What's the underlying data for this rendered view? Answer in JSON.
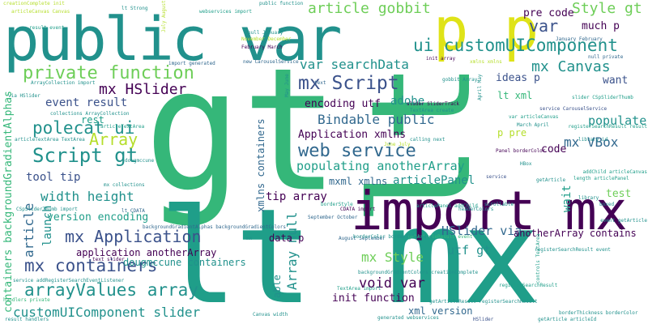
{
  "palette": {
    "dark_purple": "#440154",
    "indigo": "#3b528b",
    "blue": "#31688e",
    "teal": "#21918c",
    "green_teal": "#1f9e89",
    "green": "#35b779",
    "light_green": "#6ece58",
    "lime": "#b5de2b",
    "yellow": "#dfe318"
  },
  "words": [
    {
      "text": "gt",
      "color": "green"
    },
    {
      "text": "lt",
      "color": "green"
    },
    {
      "text": "lt mx",
      "color": "green_teal"
    },
    {
      "text": "import mx",
      "color": "dark_purple"
    },
    {
      "text": "public var",
      "color": "teal"
    },
    {
      "text": "p p",
      "color": "yellow"
    },
    {
      "text": "private function",
      "color": "light_green"
    },
    {
      "text": "ui customUIComponent",
      "color": "teal"
    },
    {
      "text": "mx Script",
      "color": "indigo"
    },
    {
      "text": "mx Canvas",
      "color": "teal"
    },
    {
      "text": "var searchData",
      "color": "teal"
    },
    {
      "text": "article gobbit",
      "color": "light_green"
    },
    {
      "text": "Style gt",
      "color": "light_green"
    },
    {
      "text": "pre code",
      "color": "dark_purple"
    },
    {
      "text": "var",
      "color": "indigo"
    },
    {
      "text": "much p",
      "color": "dark_purple"
    },
    {
      "text": "polecat ui",
      "color": "teal"
    },
    {
      "text": "web service",
      "color": "blue"
    },
    {
      "text": "Array",
      "color": "lime"
    },
    {
      "text": "Script gt",
      "color": "teal"
    },
    {
      "text": "mx HSlider",
      "color": "dark_purple"
    },
    {
      "text": "event result",
      "color": "indigo"
    },
    {
      "text": "width height",
      "color": "teal"
    },
    {
      "text": "mx Application",
      "color": "indigo"
    },
    {
      "text": "mx containers",
      "color": "indigo"
    },
    {
      "text": "arrayValues array",
      "color": "teal"
    },
    {
      "text": "customUIComponent slider",
      "color": "teal"
    },
    {
      "text": "Bindable public",
      "color": "blue"
    },
    {
      "text": "mx VBox",
      "color": "blue"
    },
    {
      "text": "populate",
      "color": "teal"
    },
    {
      "text": "want",
      "color": "indigo"
    },
    {
      "text": "code",
      "color": "dark_purple"
    },
    {
      "text": "test",
      "color": "light_green"
    },
    {
      "text": "wait",
      "color": "green_teal"
    },
    {
      "text": "populating anotherArray",
      "color": "green_teal"
    },
    {
      "text": "articlePanel",
      "color": "teal"
    },
    {
      "text": "mxml xmlns",
      "color": "blue"
    },
    {
      "text": "tip array",
      "color": "dark_purple"
    },
    {
      "text": "mx Style",
      "color": "light_green"
    },
    {
      "text": "void var",
      "color": "dark_purple"
    },
    {
      "text": "init function",
      "color": "dark_purple"
    },
    {
      "text": "HSlider via",
      "color": "blue"
    },
    {
      "text": "utf gt",
      "color": "teal"
    },
    {
      "text": "anotherArray contains",
      "color": "dark_purple"
    },
    {
      "text": "Array null",
      "color": "teal"
    },
    {
      "text": "xml version",
      "color": "blue"
    },
    {
      "text": "able",
      "color": "teal"
    },
    {
      "text": "encoding utf",
      "color": "dark_purple"
    },
    {
      "text": "Application xmlns",
      "color": "dark_purple"
    },
    {
      "text": "adobe",
      "color": "teal"
    },
    {
      "text": "tool tip",
      "color": "indigo"
    },
    {
      "text": "rest",
      "color": "green_teal"
    },
    {
      "text": "launch",
      "color": "teal"
    },
    {
      "text": "version encoding",
      "color": "green_teal"
    },
    {
      "text": "application anotherArray",
      "color": "dark_purple"
    },
    {
      "text": "dougmccune containers",
      "color": "teal"
    },
    {
      "text": "article",
      "color": "blue"
    },
    {
      "text": "containers backgroundGradientAlphas",
      "color": "green"
    },
    {
      "text": "xmlns containers",
      "color": "blue"
    },
    {
      "text": "ideas p",
      "color": "indigo"
    },
    {
      "text": "lt xml",
      "color": "green"
    },
    {
      "text": "data p",
      "color": "dark_purple"
    },
    {
      "text": "p pre",
      "color": "lime"
    },
    {
      "text": "ArrayCollection import",
      "color": "teal"
    },
    {
      "text": "creationComplete init",
      "color": "lime"
    },
    {
      "text": "articleCanvas Canvas",
      "color": "lime"
    },
    {
      "text": "null January",
      "color": "teal"
    },
    {
      "text": "November December",
      "color": "lime"
    },
    {
      "text": "February March",
      "color": "dark_purple"
    },
    {
      "text": "new CarouselService",
      "color": "blue"
    },
    {
      "text": "September October",
      "color": "blue"
    },
    {
      "text": "backgroundGradientAlphas backgroundGradientColors",
      "color": "blue"
    },
    {
      "text": "August September",
      "color": "blue"
    },
    {
      "text": "init array",
      "color": "dark_purple"
    },
    {
      "text": "null private",
      "color": "blue"
    },
    {
      "text": "January February",
      "color": "blue"
    },
    {
      "text": "March April",
      "color": "teal"
    },
    {
      "text": "import generated",
      "color": "blue"
    },
    {
      "text": "collections ArrayCollection",
      "color": "teal"
    },
    {
      "text": "articleTextArea TextArea",
      "color": "teal"
    },
    {
      "text": "CSpSliderThumb import",
      "color": "teal"
    },
    {
      "text": "lt CDATA",
      "color": "blue"
    },
    {
      "text": "CDATA import",
      "color": "dark_purple"
    },
    {
      "text": "TextArea create",
      "color": "teal"
    },
    {
      "text": "slider SliderTrack",
      "color": "dark_purple"
    },
    {
      "text": "TextArea import",
      "color": "green_teal"
    },
    {
      "text": "generated webservices",
      "color": "teal"
    },
    {
      "text": "getArticle articleId",
      "color": "teal"
    },
    {
      "text": "text slider",
      "color": "dark_purple"
    },
    {
      "text": "webservices import",
      "color": "green_teal"
    },
    {
      "text": "service CarouselService",
      "color": "indigo"
    },
    {
      "text": "var articleCanvas",
      "color": "green_teal"
    },
    {
      "text": "slider CSpSliderThumb",
      "color": "green_teal"
    },
    {
      "text": "Panel borderColor",
      "color": "dark_purple"
    },
    {
      "text": "public function",
      "color": "teal"
    },
    {
      "text": "getArticleResult event",
      "color": "green"
    },
    {
      "text": "backgroundGradientColors creationComplete",
      "color": "teal"
    },
    {
      "text": "service addRegisterSearchEventListener",
      "color": "teal"
    },
    {
      "text": "getArticleResult registerSearchResult",
      "color": "teal"
    },
    {
      "text": "registerSearchResult event",
      "color": "teal"
    },
    {
      "text": "borderColor borderThickness",
      "color": "teal"
    },
    {
      "text": "July August",
      "color": "lime"
    },
    {
      "text": "May June",
      "color": "teal"
    },
    {
      "text": "June July",
      "color": "lime"
    },
    {
      "text": "April May",
      "color": "teal"
    },
    {
      "text": "calling next",
      "color": "teal"
    },
    {
      "text": "text",
      "color": "blue"
    },
    {
      "text": "xmlns xmlns",
      "color": "lime"
    },
    {
      "text": "gobbit Array",
      "color": "teal"
    },
    {
      "text": "handlers private",
      "color": "green"
    },
    {
      "text": "lt Strong",
      "color": "teal"
    },
    {
      "text": "result handlers",
      "color": "teal"
    },
    {
      "text": "articleTextArea",
      "color": "green_teal"
    },
    {
      "text": "addChild articleCanvas",
      "color": "green_teal"
    },
    {
      "text": "articlePanel addChild",
      "color": "green_teal"
    },
    {
      "text": "length articlePanel",
      "color": "green_teal"
    },
    {
      "text": "dougmccune",
      "color": "teal"
    },
    {
      "text": "headerColors",
      "color": "teal"
    },
    {
      "text": "boxed",
      "color": "teal"
    },
    {
      "text": "borderStyle",
      "color": "green_teal"
    },
    {
      "text": "registerSearchResult",
      "color": "green_teal"
    },
    {
      "text": "service",
      "color": "indigo"
    },
    {
      "text": "mx collections",
      "color": "teal"
    },
    {
      "text": "mx",
      "color": "teal"
    },
    {
      "text": "getArticle",
      "color": "teal"
    },
    {
      "text": "via HSlider",
      "color": "teal"
    },
    {
      "text": "borderThickness borderColor",
      "color": "teal"
    },
    {
      "text": "controls TextArea",
      "color": "green_teal"
    },
    {
      "text": "library",
      "color": "teal"
    },
    {
      "text": "result event",
      "color": "green_teal"
    },
    {
      "text": "event getArticle",
      "color": "teal"
    },
    {
      "text": "Canvas width",
      "color": "teal"
    },
    {
      "text": "HBox",
      "color": "teal"
    },
    {
      "text": "registerSearchResult result",
      "color": "green_teal"
    },
    {
      "text": "HSlider",
      "color": "indigo"
    },
    {
      "text": "library_id",
      "color": "teal"
    },
    {
      "text": "scrollable",
      "color": "teal"
    }
  ]
}
